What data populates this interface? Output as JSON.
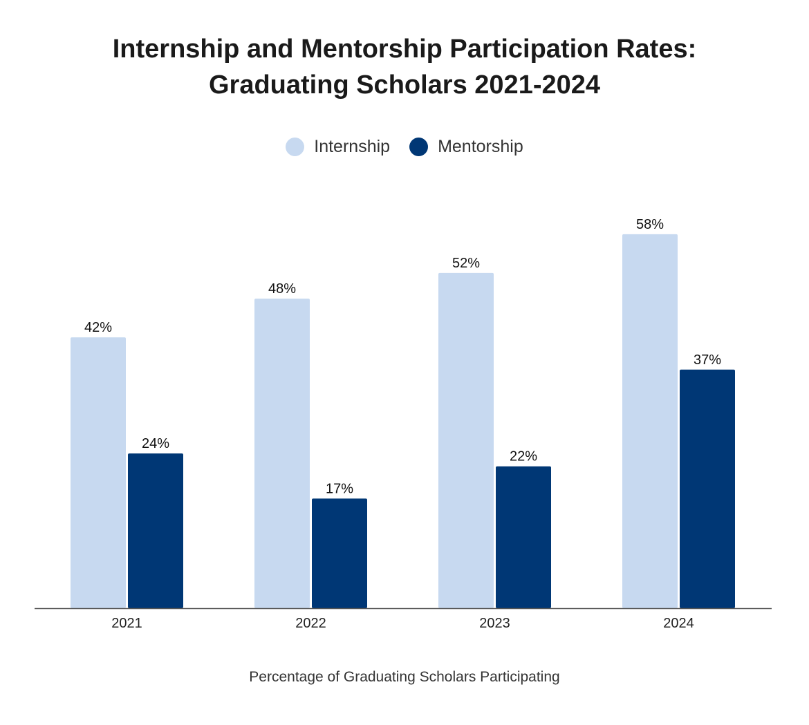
{
  "chart_data": {
    "type": "bar",
    "title_line1": "Internship and Mentorship Participation Rates:",
    "title_line2": "Graduating Scholars 2021-2024",
    "categories": [
      "2021",
      "2022",
      "2023",
      "2024"
    ],
    "series": [
      {
        "name": "Internship",
        "values": [
          42,
          48,
          52,
          58
        ],
        "color": "#c7d9f0",
        "labels": [
          "42%",
          "48%",
          "52%",
          "58%"
        ]
      },
      {
        "name": "Mentorship",
        "values": [
          24,
          17,
          22,
          37
        ],
        "color": "#003775",
        "labels": [
          "24%",
          "17%",
          "22%",
          "37%"
        ]
      }
    ],
    "xlabel": "Percentage of Graduating Scholars Participating",
    "ylabel": "",
    "ylim": [
      0,
      100
    ],
    "grid": false,
    "legend_position": "top-center"
  }
}
